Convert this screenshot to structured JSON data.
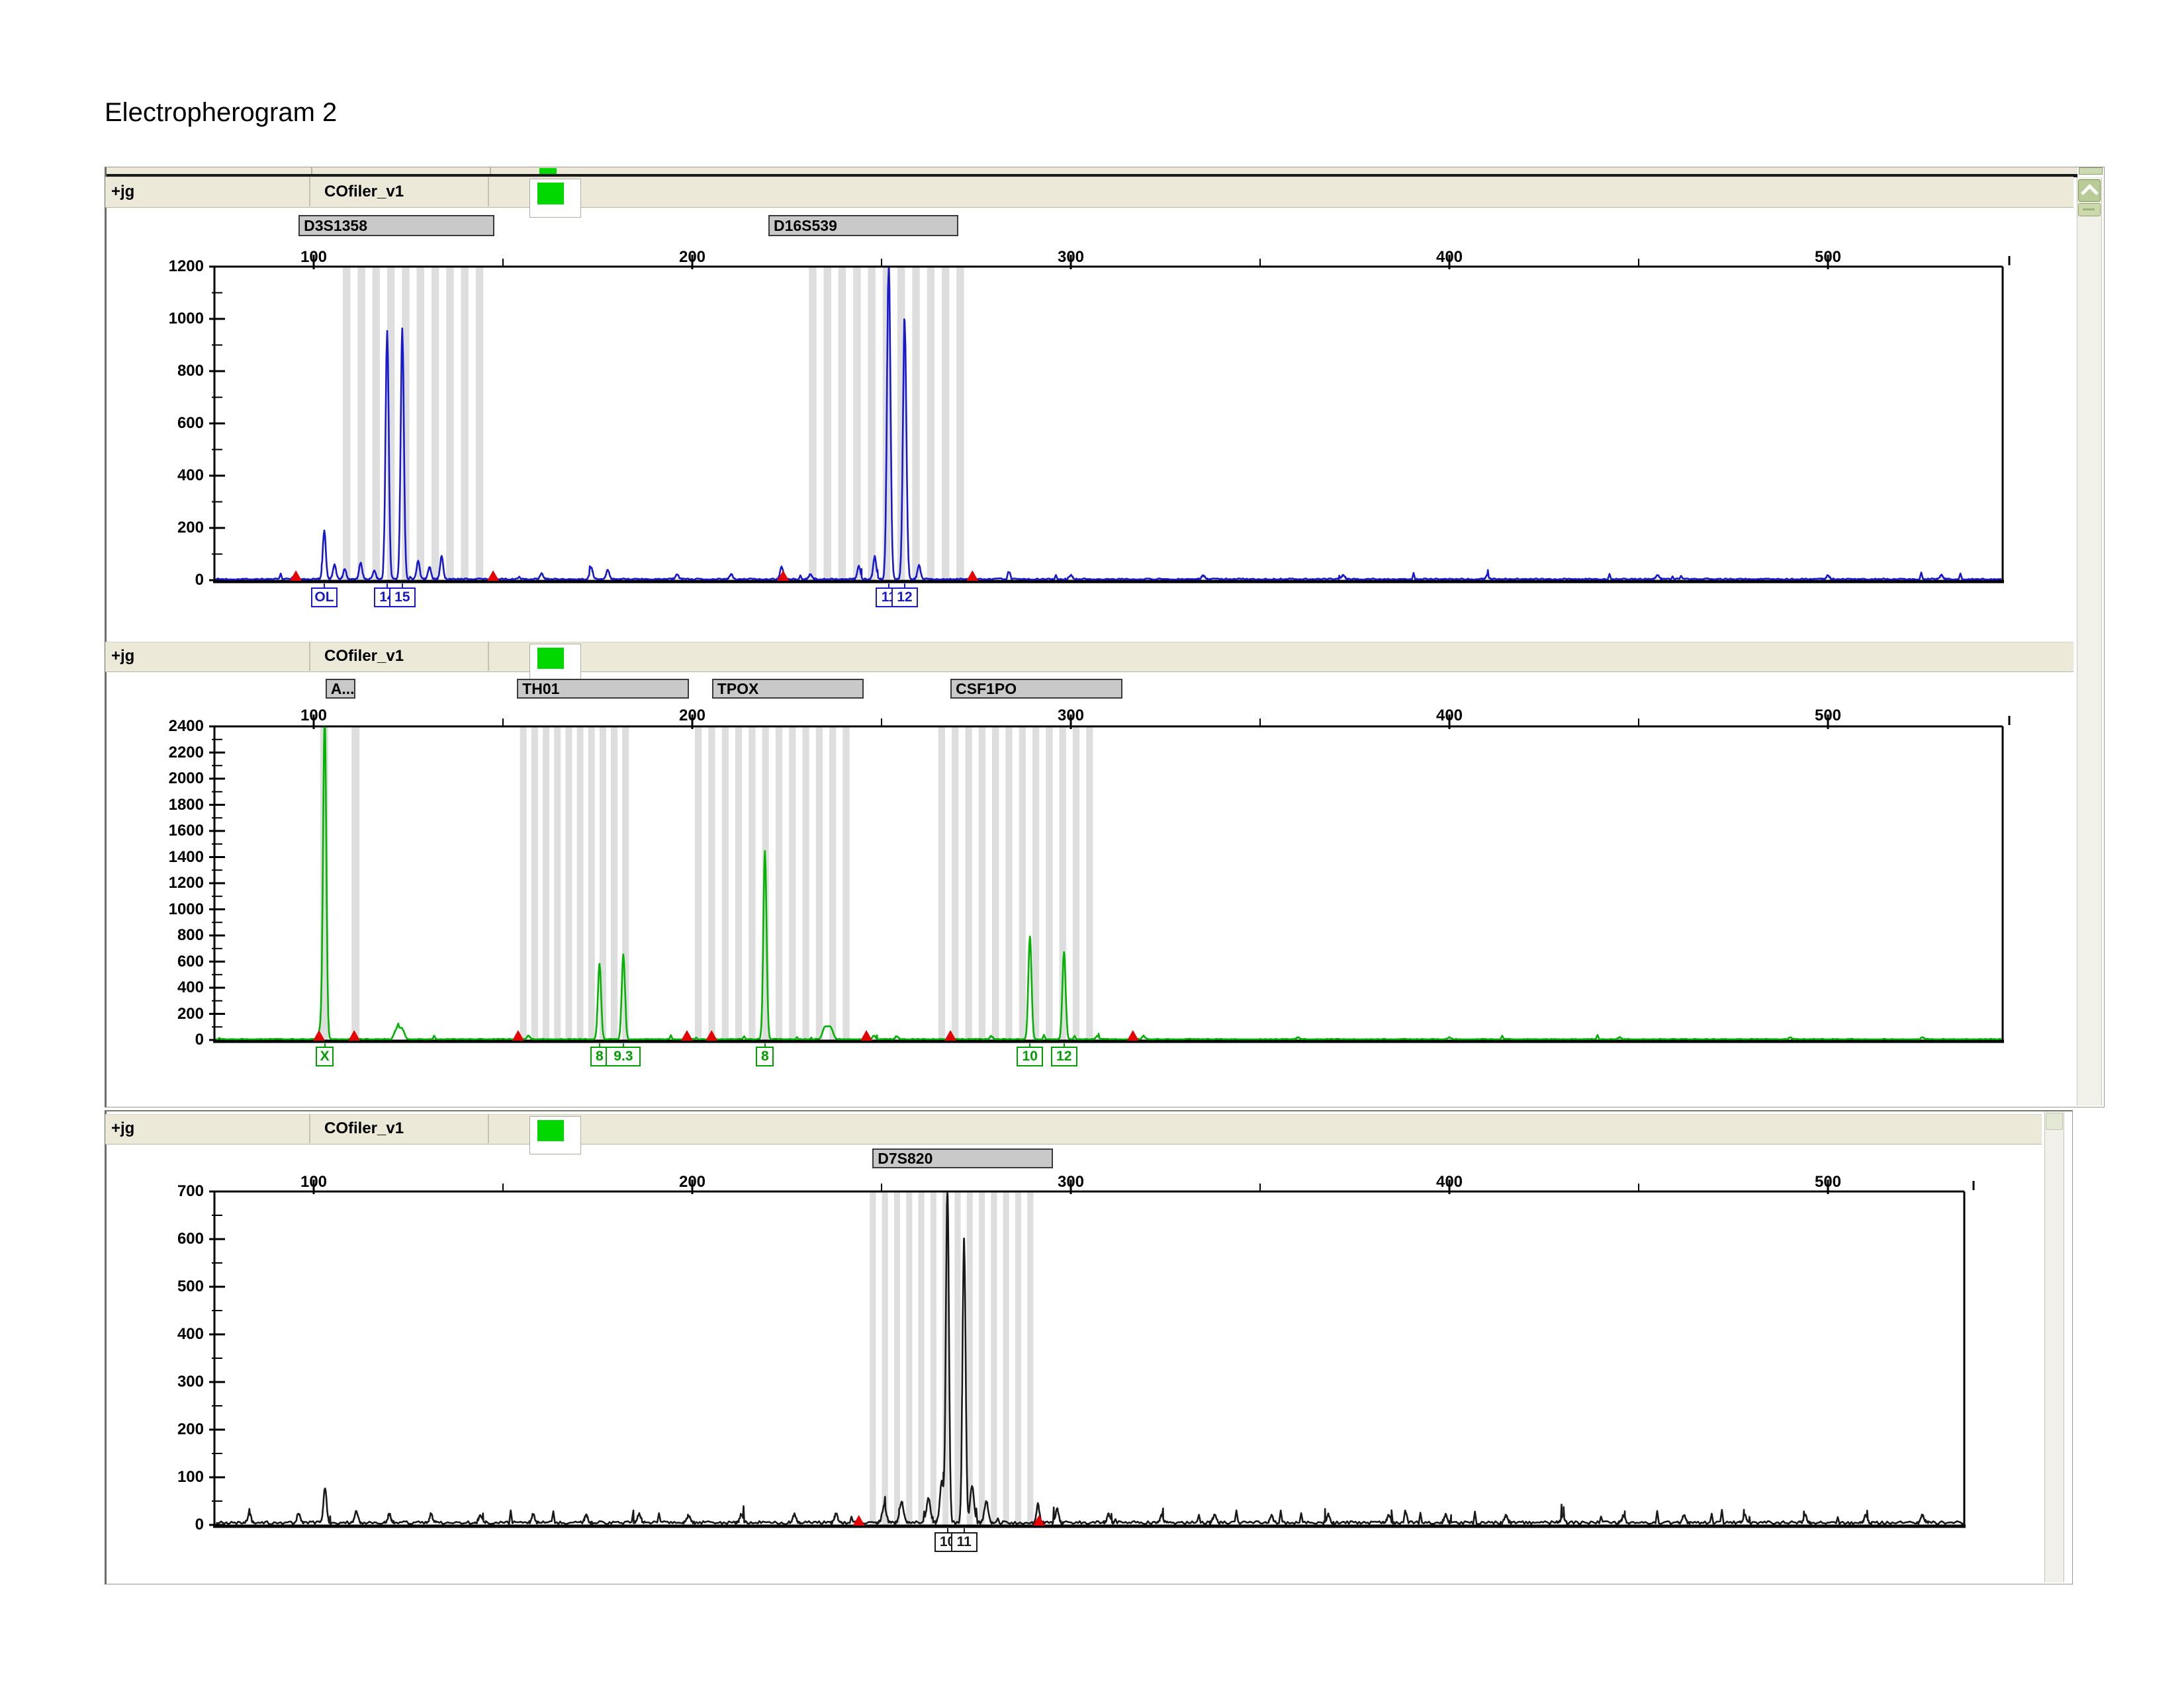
{
  "title": "Electropherogram 2",
  "header": {
    "sample_label": "+jg",
    "panel_label": "COfiler_v1"
  },
  "colors": {
    "header_bg": "#ece9d8",
    "locus_bg": "#c9c9c9",
    "locus_border": "#3a3a3a",
    "bin": "#dedede",
    "marker": "#e60000",
    "indicator_green": "#00d800",
    "trace_blue": "#1818cf",
    "trace_green": "#00b400",
    "trace_black": "#1a1a1a",
    "allele_green": "#00a000"
  },
  "scrollbar": {
    "up_icon": "chevron-up-icon",
    "thumb_icon": "scroll-thumb"
  },
  "chart_data": [
    {
      "name": "blue-dye-trace",
      "type": "line",
      "trace_color": "#1818cf",
      "allele_color": "#1818cf",
      "ylim": [
        0,
        1200
      ],
      "y_label_step": 200,
      "y_minor_step": 100,
      "x_label_ticks": [
        100,
        200,
        300,
        400,
        500
      ],
      "x_minor_step": 50,
      "x_range_bp": [
        74.2,
        546.2
      ],
      "loci": [
        {
          "label": "D3S1358",
          "from_bp": 96.0,
          "to_bp": 147.7
        },
        {
          "label": "D16S539",
          "from_bp": 220.1,
          "to_bp": 270.3
        }
      ],
      "bin_groups": [
        {
          "from_bp": 107.7,
          "to_bp": 143.0,
          "period_bp": 3.9,
          "width_bp": 2.0
        },
        {
          "from_bp": 230.8,
          "to_bp": 270.5,
          "period_bp": 3.9,
          "width_bp": 2.0
        }
      ],
      "markers_bp": [
        95.3,
        147.4,
        224.0,
        274.0
      ],
      "peaks": [
        {
          "bp": 102.8,
          "rfu": 185
        },
        {
          "bp": 105.5,
          "rfu": 55
        },
        {
          "bp": 108.2,
          "rfu": 38
        },
        {
          "bp": 112.4,
          "rfu": 64
        },
        {
          "bp": 116.0,
          "rfu": 32
        },
        {
          "bp": 119.4,
          "rfu": 950,
          "sigma": 0.42
        },
        {
          "bp": 123.4,
          "rfu": 958,
          "sigma": 0.42
        },
        {
          "bp": 127.6,
          "rfu": 70
        },
        {
          "bp": 130.6,
          "rfu": 46
        },
        {
          "bp": 133.8,
          "rfu": 88
        },
        {
          "bp": 160.2,
          "rfu": 22
        },
        {
          "bp": 173.3,
          "rfu": 44
        },
        {
          "bp": 177.7,
          "rfu": 36
        },
        {
          "bp": 196.0,
          "rfu": 18
        },
        {
          "bp": 210.3,
          "rfu": 18
        },
        {
          "bp": 223.6,
          "rfu": 48
        },
        {
          "bp": 231.2,
          "rfu": 18
        },
        {
          "bp": 244.0,
          "rfu": 50
        },
        {
          "bp": 248.2,
          "rfu": 86
        },
        {
          "bp": 251.9,
          "rfu": 1230,
          "sigma": 0.45
        },
        {
          "bp": 256.1,
          "rfu": 990,
          "sigma": 0.45
        },
        {
          "bp": 259.9,
          "rfu": 55
        },
        {
          "bp": 300,
          "rfu": 16
        },
        {
          "bp": 335,
          "rfu": 14
        },
        {
          "bp": 372,
          "rfu": 16
        },
        {
          "bp": 410,
          "rfu": 14
        },
        {
          "bp": 455,
          "rfu": 16
        },
        {
          "bp": 500,
          "rfu": 14
        },
        {
          "bp": 530,
          "rfu": 15
        }
      ],
      "alleles": [
        {
          "label": "OL",
          "bp": 102.8
        },
        {
          "label": "14",
          "bp": 119.4
        },
        {
          "label": "15",
          "bp": 123.4
        },
        {
          "label": "11",
          "bp": 251.9
        },
        {
          "label": "12",
          "bp": 256.1
        }
      ],
      "noise": {
        "amp_rfu": 7,
        "spike_rfu": 24,
        "spike_prob": 0.012,
        "seed": 7
      }
    },
    {
      "name": "green-dye-trace",
      "type": "line",
      "trace_color": "#00b400",
      "allele_color": "#00a000",
      "ylim": [
        0,
        2400
      ],
      "y_label_step": 200,
      "y_minor_step": 100,
      "x_label_ticks": [
        100,
        200,
        300,
        400,
        500
      ],
      "x_minor_step": 50,
      "x_range_bp": [
        74.2,
        546.2
      ],
      "loci": [
        {
          "label": "A...",
          "from_bp": 103.1,
          "to_bp": 111.0
        },
        {
          "label": "TH01",
          "from_bp": 153.7,
          "to_bp": 199.1
        },
        {
          "label": "TPOX",
          "from_bp": 205.2,
          "to_bp": 245.3
        },
        {
          "label": "CSF1PO",
          "from_bp": 268.2,
          "to_bp": 313.7
        }
      ],
      "bin_groups": [
        {
          "from_bp": 101.75,
          "to_bp": 101.8,
          "period_bp": 9.0,
          "width_bp": 2.1
        },
        {
          "from_bp": 110.0,
          "to_bp": 110.05,
          "period_bp": 9.0,
          "width_bp": 2.1
        },
        {
          "from_bp": 154.5,
          "to_bp": 181.6,
          "period_bp": 3.0,
          "width_bp": 1.75
        },
        {
          "from_bp": 200.7,
          "to_bp": 239.8,
          "period_bp": 3.55,
          "width_bp": 1.8
        },
        {
          "from_bp": 265.0,
          "to_bp": 304.1,
          "period_bp": 3.55,
          "width_bp": 1.8
        }
      ],
      "markers_bp": [
        101.4,
        110.7,
        154.0,
        198.6,
        205.1,
        246.0,
        268.2,
        316.4
      ],
      "peaks": [
        {
          "bp": 101.9,
          "rfu": 88,
          "sigma": 0.5
        },
        {
          "bp": 102.9,
          "rfu": 2460,
          "sigma": 0.42
        },
        {
          "bp": 122.6,
          "rfu": 90,
          "sigma": 1.5,
          "flat": true
        },
        {
          "bp": 154.0,
          "rfu": 40
        },
        {
          "bp": 156.7,
          "rfu": 28
        },
        {
          "bp": 175.5,
          "rfu": 580,
          "sigma": 0.42
        },
        {
          "bp": 181.8,
          "rfu": 650,
          "sigma": 0.42
        },
        {
          "bp": 199.0,
          "rfu": 24
        },
        {
          "bp": 205.2,
          "rfu": 38
        },
        {
          "bp": 219.2,
          "rfu": 1445,
          "sigma": 0.42
        },
        {
          "bp": 235.8,
          "rfu": 100,
          "sigma": 1.6,
          "flat": true
        },
        {
          "bp": 248.0,
          "rfu": 28
        },
        {
          "bp": 254.0,
          "rfu": 24
        },
        {
          "bp": 279.0,
          "rfu": 24
        },
        {
          "bp": 289.2,
          "rfu": 785,
          "sigma": 0.42
        },
        {
          "bp": 298.2,
          "rfu": 670,
          "sigma": 0.42
        },
        {
          "bp": 307.0,
          "rfu": 28
        },
        {
          "bp": 316.4,
          "rfu": 44
        },
        {
          "bp": 319.2,
          "rfu": 26
        },
        {
          "bp": 360,
          "rfu": 14
        },
        {
          "bp": 400,
          "rfu": 14
        },
        {
          "bp": 445,
          "rfu": 15
        },
        {
          "bp": 490,
          "rfu": 13
        },
        {
          "bp": 525,
          "rfu": 14
        }
      ],
      "alleles": [
        {
          "label": "X",
          "bp": 102.9
        },
        {
          "label": "8",
          "bp": 175.5
        },
        {
          "label": "9.3",
          "bp": 181.8
        },
        {
          "label": "8",
          "bp": 219.2
        },
        {
          "label": "10",
          "bp": 289.2
        },
        {
          "label": "12",
          "bp": 298.2
        }
      ],
      "noise": {
        "amp_rfu": 9,
        "spike_rfu": 30,
        "spike_prob": 0.01,
        "seed": 13
      }
    },
    {
      "name": "black-dye-trace",
      "type": "line",
      "trace_color": "#1a1a1a",
      "allele_color": "#1a1a1a",
      "ylim": [
        0,
        700
      ],
      "y_label_step": 100,
      "y_minor_step": 50,
      "x_label_ticks": [
        100,
        200,
        300,
        400,
        500
      ],
      "x_minor_step": 50,
      "x_range_bp": [
        74.2,
        536.0
      ],
      "loci": [
        {
          "label": "D7S820",
          "from_bp": 247.6,
          "to_bp": 295.3
        }
      ],
      "bin_groups": [
        {
          "from_bp": 246.9,
          "to_bp": 289.9,
          "period_bp": 3.2,
          "width_bp": 1.6
        }
      ],
      "markers_bp": [
        244.0,
        291.6
      ],
      "peaks": [
        {
          "bp": 103.0,
          "rfu": 74
        },
        {
          "bp": 111.3,
          "rfu": 25
        },
        {
          "bp": 250.7,
          "rfu": 38,
          "sigma": 0.5
        },
        {
          "bp": 255.3,
          "rfu": 44,
          "sigma": 0.5
        },
        {
          "bp": 262.4,
          "rfu": 52,
          "sigma": 0.5
        },
        {
          "bp": 265.9,
          "rfu": 85,
          "sigma": 0.5
        },
        {
          "bp": 267.4,
          "rfu": 700,
          "sigma": 0.4
        },
        {
          "bp": 271.8,
          "rfu": 598,
          "sigma": 0.4
        },
        {
          "bp": 273.9,
          "rfu": 78,
          "sigma": 0.5
        },
        {
          "bp": 277.7,
          "rfu": 44,
          "sigma": 0.5
        },
        {
          "bp": 291.3,
          "rfu": 38
        },
        {
          "bp": 296.4,
          "rfu": 28
        },
        {
          "bp": 83,
          "rfu": 20
        },
        {
          "bp": 96,
          "rfu": 20
        },
        {
          "bp": 120,
          "rfu": 18
        },
        {
          "bp": 131,
          "rfu": 18
        },
        {
          "bp": 144,
          "rfu": 16
        },
        {
          "bp": 158,
          "rfu": 18
        },
        {
          "bp": 172,
          "rfu": 16
        },
        {
          "bp": 186,
          "rfu": 18
        },
        {
          "bp": 199,
          "rfu": 16
        },
        {
          "bp": 213,
          "rfu": 18
        },
        {
          "bp": 227,
          "rfu": 18
        },
        {
          "bp": 238,
          "rfu": 20
        },
        {
          "bp": 310,
          "rfu": 18
        },
        {
          "bp": 324,
          "rfu": 16
        },
        {
          "bp": 338,
          "rfu": 18
        },
        {
          "bp": 353,
          "rfu": 15
        },
        {
          "bp": 368,
          "rfu": 17
        },
        {
          "bp": 384,
          "rfu": 15
        },
        {
          "bp": 399,
          "rfu": 17
        },
        {
          "bp": 415,
          "rfu": 15
        },
        {
          "bp": 430,
          "rfu": 16
        },
        {
          "bp": 446,
          "rfu": 15
        },
        {
          "bp": 462,
          "rfu": 16
        },
        {
          "bp": 478,
          "rfu": 15
        },
        {
          "bp": 494,
          "rfu": 16
        },
        {
          "bp": 510,
          "rfu": 15
        },
        {
          "bp": 525,
          "rfu": 16
        }
      ],
      "alleles": [
        {
          "label": "10",
          "bp": 267.4
        },
        {
          "label": "11",
          "bp": 271.8
        }
      ],
      "noise": {
        "amp_rfu": 8,
        "spike_rfu": 24,
        "spike_prob": 0.028,
        "seed": 21
      }
    }
  ]
}
